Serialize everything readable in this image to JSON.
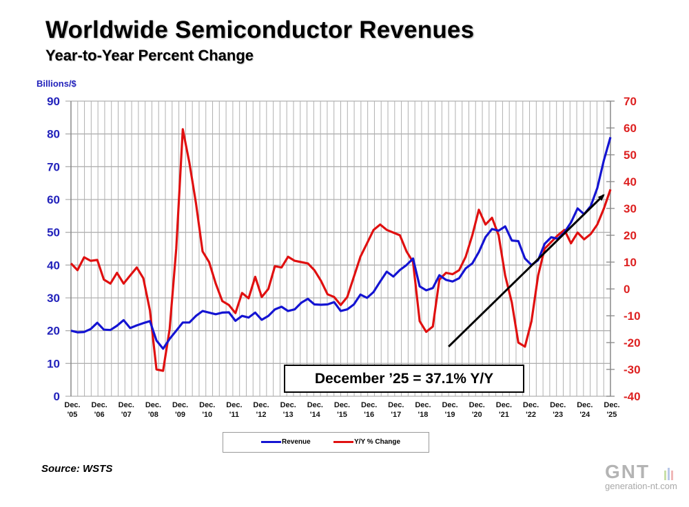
{
  "header": {
    "title": "Worldwide Semiconductor Revenues",
    "subtitle": "Year-to-Year Percent Change"
  },
  "source": "Source: WSTS",
  "watermark": {
    "logo": "GNT",
    "url": "generation-nt.com"
  },
  "colors": {
    "revenue": "#1414d2",
    "yoy": "#e01010",
    "grid": "#b0b0b0",
    "left_axis": "#2222bb",
    "right_axis": "#dd2020",
    "arrow": "#000000"
  },
  "chart_data": {
    "type": "line",
    "title": "Worldwide Semiconductor Revenues",
    "subtitle": "Year-to-Year Percent Change",
    "ylabel_left": "Billions/$",
    "ylim_left": [
      0,
      90
    ],
    "yticks_left": [
      "90",
      "80",
      "70",
      "60",
      "50",
      "40",
      "30",
      "20",
      "10",
      "0"
    ],
    "ylim_right": [
      -40,
      70
    ],
    "yticks_right": [
      "70",
      "60",
      "50",
      "40",
      "30",
      "20",
      "10",
      "0",
      "-10",
      "-20",
      "-30",
      "-40"
    ],
    "xtick_labels": [
      [
        "Dec.",
        "'05"
      ],
      [
        "Dec.",
        "'06"
      ],
      [
        "Dec.",
        "'07"
      ],
      [
        "Dec.",
        "'08"
      ],
      [
        "Dec.",
        "'09"
      ],
      [
        "Dec.",
        "'10"
      ],
      [
        "Dec.",
        "'11"
      ],
      [
        "Dec.",
        "'12"
      ],
      [
        "Dec.",
        "'13"
      ],
      [
        "Dec.",
        "'14"
      ],
      [
        "Dec.",
        "'15"
      ],
      [
        "Dec.",
        "'16"
      ],
      [
        "Dec.",
        "'17"
      ],
      [
        "Dec.",
        "'18"
      ],
      [
        "Dec.",
        "'19"
      ],
      [
        "Dec.",
        "'20"
      ],
      [
        "Dec.",
        "'21"
      ],
      [
        "Dec.",
        "'22"
      ],
      [
        "Dec.",
        "'23"
      ],
      [
        "Dec.",
        "'24"
      ],
      [
        "Dec.",
        "'25"
      ]
    ],
    "x_unit": "years since Dec. 2005 (quarterly)",
    "grid": true,
    "legend": {
      "position": "bottom",
      "entries": [
        "Revenue",
        "Y/Y % Change"
      ]
    },
    "series": [
      {
        "name": "Revenue",
        "axis": "left",
        "values": [
          20.0,
          19.5,
          19.6,
          20.5,
          22.4,
          20.3,
          20.2,
          21.5,
          23.2,
          20.8,
          21.6,
          22.3,
          22.9,
          17.0,
          14.5,
          17.5,
          20.0,
          22.5,
          22.5,
          24.5,
          26.0,
          25.5,
          25.0,
          25.5,
          25.6,
          23.0,
          24.5,
          24.0,
          25.5,
          23.3,
          24.5,
          26.5,
          27.3,
          26.0,
          26.5,
          28.5,
          29.7,
          28.0,
          27.9,
          28.0,
          28.7,
          26.0,
          26.5,
          28.0,
          31.0,
          30.0,
          31.8,
          35.0,
          38.0,
          36.5,
          38.5,
          40.0,
          42.0,
          33.5,
          32.3,
          33.0,
          36.9,
          35.5,
          35.0,
          36.0,
          39.0,
          40.5,
          44.0,
          48.5,
          51.0,
          50.5,
          51.8,
          47.5,
          47.3,
          42.0,
          40.0,
          41.5,
          46.5,
          48.5,
          48.0,
          50.0,
          53.0,
          57.3,
          55.5,
          58.0,
          63.5,
          72.0,
          79.0
        ]
      },
      {
        "name": "Y/Y % Change",
        "axis": "right",
        "values": [
          9.5,
          7.0,
          11.8,
          10.5,
          10.8,
          3.5,
          2.0,
          6.0,
          2.0,
          5.0,
          8.0,
          4.0,
          -8.0,
          -30.0,
          -30.5,
          -15.0,
          15.0,
          59.5,
          47.0,
          32.0,
          14.0,
          10.0,
          2.0,
          -4.5,
          -6.0,
          -9.0,
          -1.5,
          -3.5,
          4.5,
          -3.0,
          0.0,
          8.5,
          8.0,
          12.0,
          10.5,
          10.0,
          9.5,
          7.0,
          3.0,
          -2.0,
          -3.0,
          -6.0,
          -3.0,
          4.5,
          12.0,
          17.0,
          22.0,
          24.0,
          22.0,
          21.0,
          20.0,
          14.0,
          10.0,
          -12.0,
          -16.0,
          -14.0,
          3.5,
          6.0,
          5.5,
          7.0,
          12.0,
          20.0,
          29.5,
          24.0,
          26.5,
          20.0,
          5.0,
          -5.0,
          -20.0,
          -21.5,
          -12.0,
          5.0,
          15.0,
          17.5,
          20.0,
          22.0,
          17.0,
          21.0,
          18.5,
          20.5,
          24.0,
          30.0,
          37.1
        ]
      }
    ],
    "annotation": "December ’25 = 37.1% Y/Y",
    "trend_arrow": {
      "from": {
        "x": 14.0,
        "y_right": -21.5
      },
      "to": {
        "x": 19.75,
        "y_right": 35.0
      }
    }
  }
}
